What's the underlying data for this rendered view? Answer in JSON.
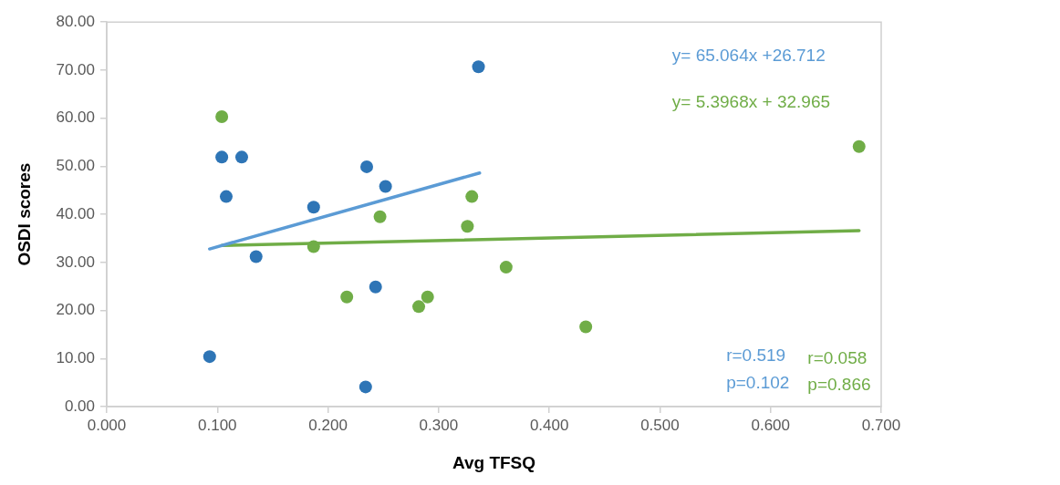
{
  "chart_data": {
    "type": "scatter",
    "xlabel": "Avg TFSQ",
    "ylabel": "OSDI scores",
    "xlim": [
      0,
      0.7
    ],
    "xticks": [
      {
        "value": 0,
        "label": "0.000"
      },
      {
        "value": 0.1,
        "label": "0.100"
      },
      {
        "value": 0.2,
        "label": "0.200"
      },
      {
        "value": 0.3,
        "label": "0.300"
      },
      {
        "value": 0.4,
        "label": "0.400"
      },
      {
        "value": 0.5,
        "label": "0.500"
      },
      {
        "value": 0.6,
        "label": "0.600"
      },
      {
        "value": 0.7,
        "label": "0.700"
      }
    ],
    "ylim": [
      0,
      80
    ],
    "yticks": [
      {
        "value": 0,
        "label": "0.00"
      },
      {
        "value": 10,
        "label": "10.00"
      },
      {
        "value": 20,
        "label": "20.00"
      },
      {
        "value": 30,
        "label": "30.00"
      },
      {
        "value": 40,
        "label": "40.00"
      },
      {
        "value": 50,
        "label": "50.00"
      },
      {
        "value": 60,
        "label": "60.00"
      },
      {
        "value": 70,
        "label": "70.00"
      },
      {
        "value": 80,
        "label": "80.00"
      }
    ],
    "grid": false,
    "legend": false,
    "series": [
      {
        "type": "scatter",
        "color": "#2e75b6",
        "marker": "circle",
        "x": [
          0.093,
          0.104,
          0.108,
          0.122,
          0.135,
          0.187,
          0.235,
          0.243,
          0.252,
          0.234,
          0.336
        ],
        "values": [
          10.4,
          51.9,
          43.7,
          51.9,
          31.2,
          41.5,
          49.9,
          24.9,
          45.8,
          4.1,
          70.7
        ]
      },
      {
        "type": "scatter",
        "color": "#70ad47",
        "marker": "circle",
        "x": [
          0.104,
          0.187,
          0.217,
          0.247,
          0.282,
          0.29,
          0.326,
          0.33,
          0.361,
          0.433,
          0.68
        ],
        "values": [
          60.3,
          33.3,
          22.8,
          39.5,
          20.8,
          22.8,
          37.5,
          43.7,
          29.0,
          16.6,
          54.1
        ]
      },
      {
        "type": "line",
        "color": "#5b9bd5",
        "marker": "none",
        "x": [
          0.093,
          0.337
        ],
        "values": [
          32.8,
          48.6
        ]
      },
      {
        "type": "line",
        "color": "#70ad47",
        "marker": "none",
        "x": [
          0.104,
          0.68
        ],
        "values": [
          33.5,
          36.6
        ]
      }
    ],
    "annotations": [
      "y= 65.064x +26.712",
      "y= 5.3968x + 32.965",
      "r=0.519",
      "p=0.102",
      "r=0.058",
      "p=0.866"
    ]
  }
}
